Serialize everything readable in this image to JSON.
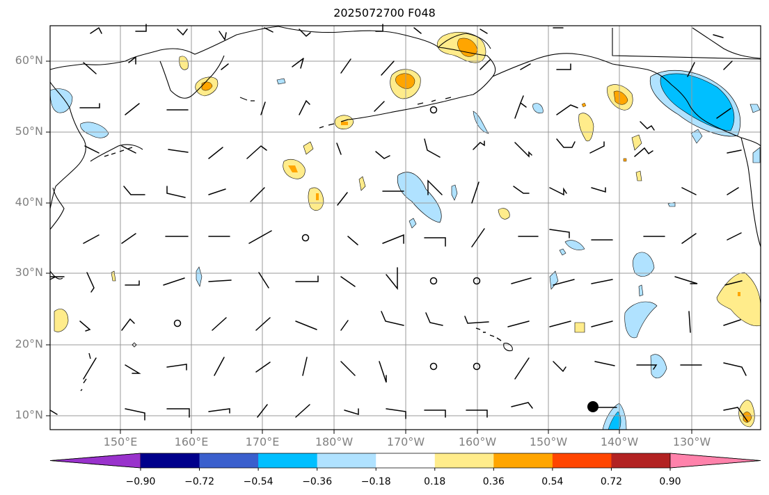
{
  "title": "2025072700 F048",
  "lat_labels": [
    "60°N",
    "50°N",
    "40°N",
    "30°N",
    "20°N",
    "10°N"
  ],
  "lon_labels": [
    "150°E",
    "160°E",
    "170°E",
    "180°W",
    "170°W",
    "160°W",
    "150°W",
    "140°W",
    "130°W"
  ],
  "colorbar": {
    "ticks": [
      "−0.90",
      "−0.72",
      "−0.54",
      "−0.36",
      "−0.18",
      "0.18",
      "0.36",
      "0.54",
      "0.72",
      "0.90"
    ],
    "colors": [
      "#9932CC",
      "#00008B",
      "#3A5FCD",
      "#00BFFF",
      "#B0E2FF",
      "#FFFFFF",
      "#FFEC8B",
      "#FFA500",
      "#FF4500",
      "#B22222",
      "#FF82AB"
    ]
  },
  "layer_colors": {
    "light_blue": "#B0E2FF",
    "blue": "#00BFFF",
    "light_yellow": "#FFEC8B",
    "orange": "#FFA500"
  }
}
